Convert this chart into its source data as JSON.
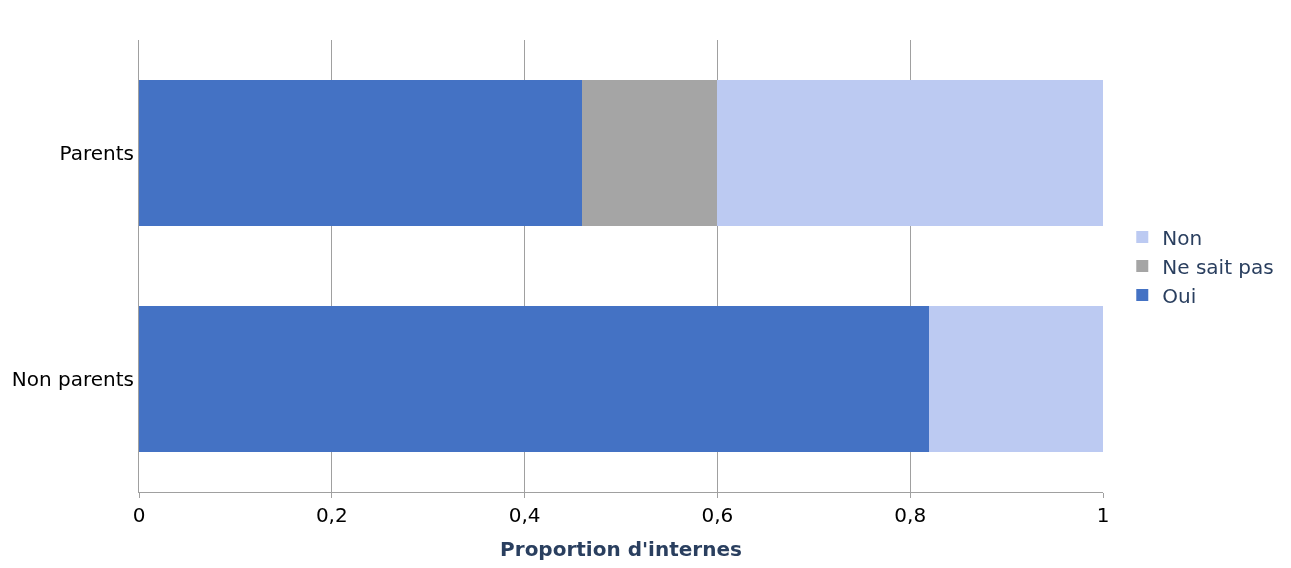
{
  "chart_data": {
    "type": "bar",
    "orientation": "horizontal",
    "stacked": true,
    "categories": [
      "Parents",
      "Non parents"
    ],
    "series": [
      {
        "name": "Oui",
        "color": "#4472c4",
        "values": [
          0.46,
          0.82
        ]
      },
      {
        "name": "Ne sait pas",
        "color": "#a5a5a5",
        "values": [
          0.14,
          0
        ]
      },
      {
        "name": "Non",
        "color": "#bccaf2",
        "values": [
          0.4,
          0.18
        ]
      }
    ],
    "xlabel": "Proportion d'internes",
    "xlim": [
      0,
      1
    ],
    "xticks": [
      0,
      {
        "value": 0.2,
        "label": "0,2"
      },
      {
        "value": 0.4,
        "label": "0,4"
      },
      {
        "value": 0.6,
        "label": "0,6"
      },
      {
        "value": 0.8,
        "label": "0,8"
      },
      1
    ],
    "grid": "x",
    "legend": "right"
  }
}
